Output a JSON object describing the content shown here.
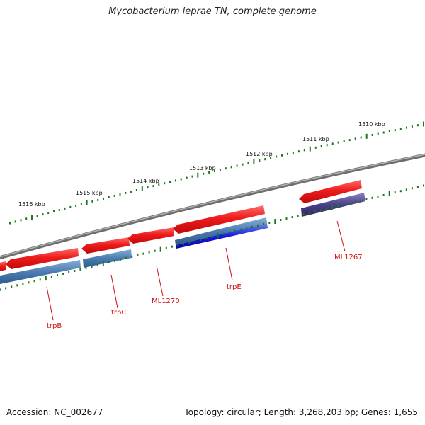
{
  "header": {
    "title": "Mycobacterium leprae TN, complete genome"
  },
  "footer": {
    "accession": "Accession: NC_002677",
    "summary": "Topology: circular; Length: 3,268,203 bp; Genes: 1,655"
  },
  "ticks": [
    {
      "label": "1510 kbp"
    },
    {
      "label": "1511 kbp"
    },
    {
      "label": "1512 kbp"
    },
    {
      "label": "1513 kbp"
    },
    {
      "label": "1514 kbp"
    },
    {
      "label": "1515 kbp"
    },
    {
      "label": "1516 kbp"
    }
  ],
  "genes": [
    {
      "name": "trpB"
    },
    {
      "name": "trpC"
    },
    {
      "name": "ML1270"
    },
    {
      "name": "trpE"
    },
    {
      "name": "ML1267"
    }
  ],
  "colors": {
    "forward_feature": "#e8141c",
    "cds_steel": "#4a7bb0",
    "cds_blue": "#1a1ae0",
    "cds_purple": "#4b3f8a",
    "backbone": "#808080",
    "tick_green": "#1a7a1a",
    "label_red": "#d01010"
  }
}
